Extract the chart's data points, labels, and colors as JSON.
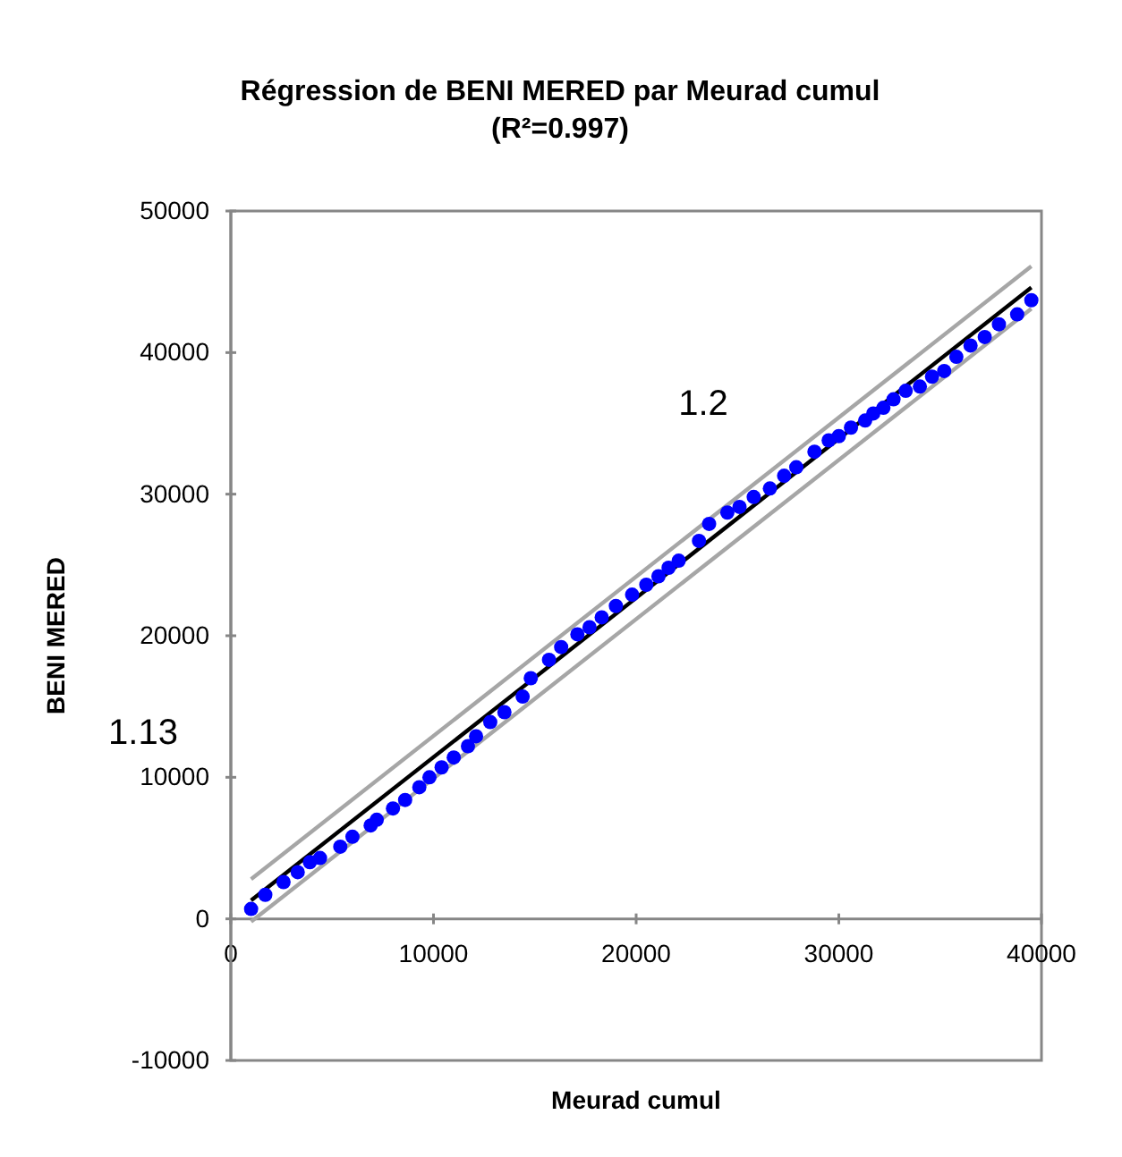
{
  "chart_data": {
    "type": "scatter",
    "title": "Régression de BENI MERED par Meurad cumul\n(R²=0.997)",
    "xlabel": "Meurad cumul",
    "ylabel": "BENI MERED",
    "xlim": [
      0,
      40000
    ],
    "xticks": [
      0,
      10000,
      20000,
      30000,
      40000
    ],
    "ylim": [
      -10000,
      50000
    ],
    "yticks": [
      -10000,
      0,
      10000,
      20000,
      30000,
      40000,
      50000
    ],
    "grid": false,
    "annotations": [
      "1.2",
      "1.13"
    ],
    "series": [
      {
        "marker": "circle",
        "color": "#0000ff",
        "x": [
          1000,
          1700,
          2600,
          3300,
          3900,
          4400,
          5400,
          6000,
          6900,
          7200,
          8000,
          8600,
          9300,
          9800,
          10400,
          11000,
          11700,
          12100,
          12800,
          13500,
          14400,
          14800,
          15700,
          16300,
          17100,
          17700,
          18300,
          19000,
          19800,
          20500,
          21100,
          21600,
          22100,
          23100,
          23600,
          24500,
          25100,
          25800,
          26600,
          27300,
          27900,
          28800,
          29500,
          30000,
          30600,
          31300,
          31700,
          32200,
          32700,
          33300,
          34000,
          34600,
          35200,
          35800,
          36500,
          37200,
          37900,
          38800,
          39500
        ],
        "values": [
          700,
          1700,
          2600,
          3300,
          4000,
          4300,
          5100,
          5800,
          6600,
          7000,
          7800,
          8400,
          9300,
          10000,
          10700,
          11400,
          12200,
          12900,
          13900,
          14600,
          15700,
          17000,
          18300,
          19200,
          20100,
          20600,
          21300,
          22100,
          22900,
          23600,
          24200,
          24800,
          25300,
          26700,
          27900,
          28700,
          29100,
          29800,
          30400,
          31300,
          31900,
          33000,
          33800,
          34100,
          34700,
          35200,
          35700,
          36100,
          36700,
          37300,
          37600,
          38300,
          38700,
          39700,
          40500,
          41100,
          42000,
          42700,
          43700
        ]
      },
      {
        "type": "line",
        "color": "#000000",
        "x": [
          1000,
          39500
        ],
        "values": [
          1300,
          44600
        ]
      },
      {
        "type": "line",
        "color": "#a6a6a6",
        "x": [
          1000,
          39500
        ],
        "values": [
          2800,
          46100
        ]
      },
      {
        "type": "line",
        "color": "#a6a6a6",
        "x": [
          1000,
          39500
        ],
        "values": [
          -200,
          43100
        ]
      }
    ]
  }
}
